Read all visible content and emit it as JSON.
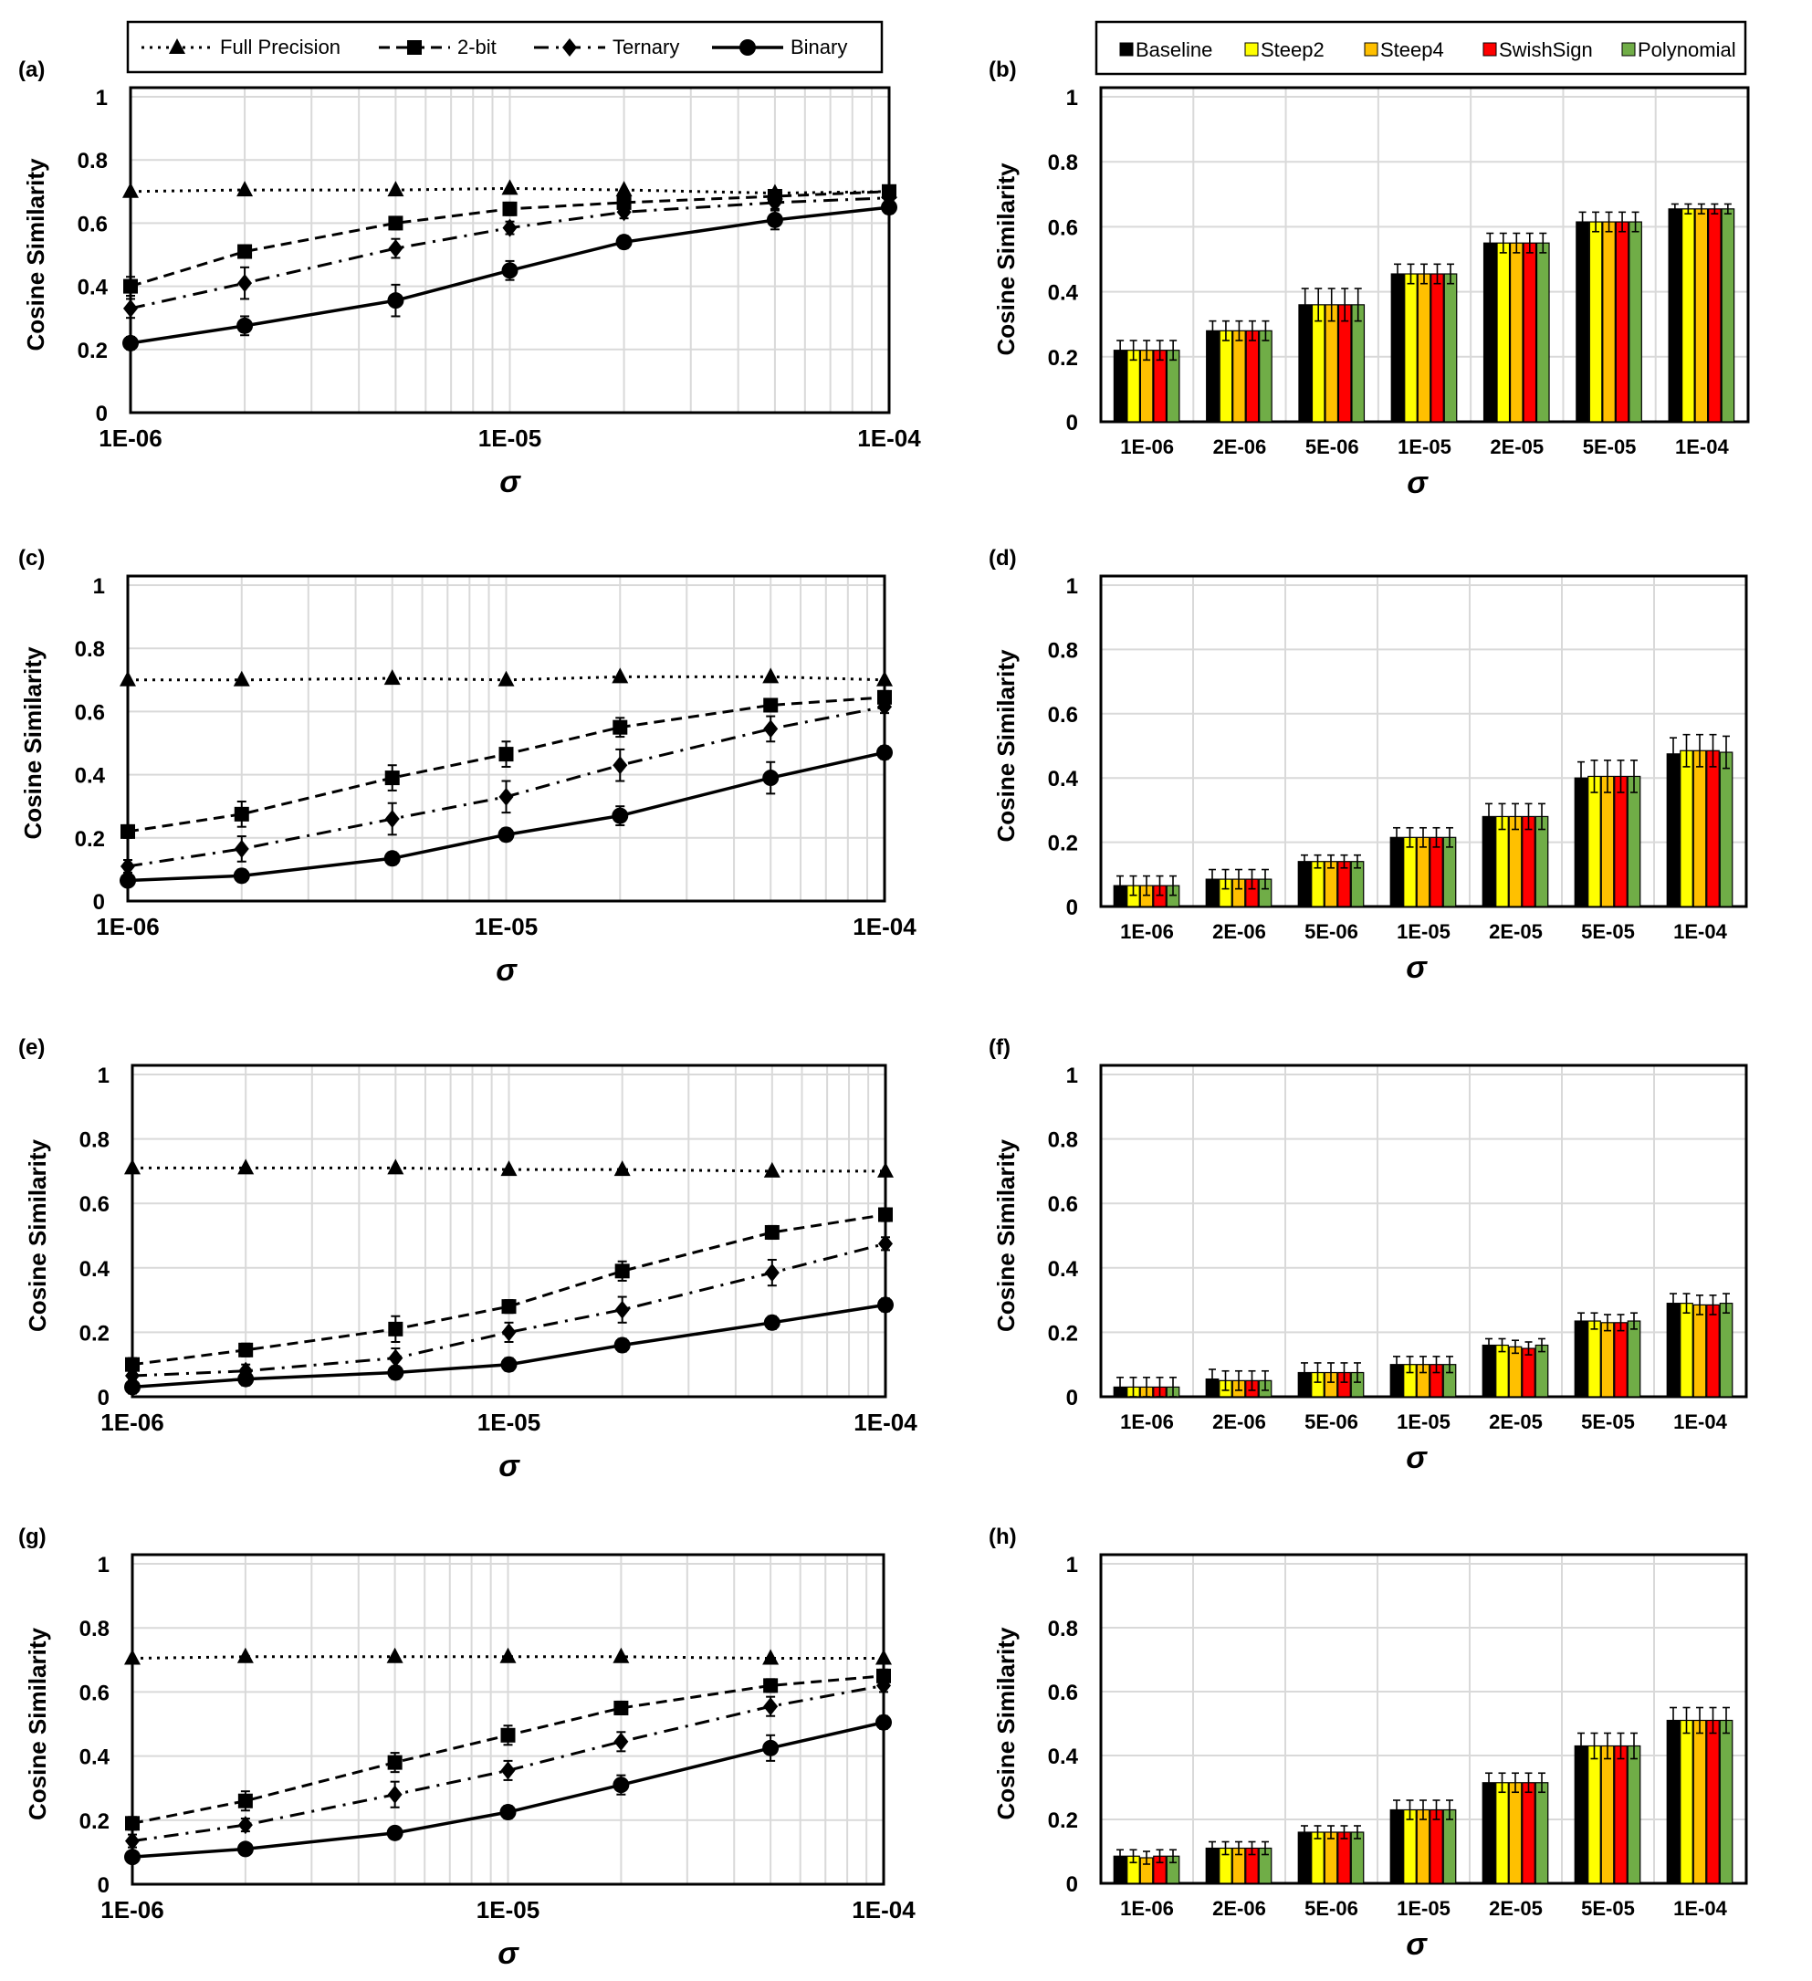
{
  "legends": {
    "line": [
      {
        "label": "Full Precision",
        "style": "dotted",
        "marker": "triangle"
      },
      {
        "label": "2-bit",
        "style": "dashed",
        "marker": "square"
      },
      {
        "label": "Ternary",
        "style": "dashdot",
        "marker": "diamond"
      },
      {
        "label": "Binary",
        "style": "solid",
        "marker": "circle"
      }
    ],
    "bar": [
      {
        "label": "Baseline",
        "color": "#000000"
      },
      {
        "label": "Steep2",
        "color": "#ffff00"
      },
      {
        "label": "Steep4",
        "color": "#ffc000"
      },
      {
        "label": "SwishSign",
        "color": "#ff0000"
      },
      {
        "label": "Polynomial",
        "color": "#70ad47"
      }
    ]
  },
  "chart_data": [
    {
      "panel": "(a)",
      "type": "line",
      "xscale": "log",
      "x": [
        1e-06,
        2e-06,
        5e-06,
        1e-05,
        2e-05,
        5e-05,
        0.0001
      ],
      "xtick_labels": [
        "1E-06",
        "1E-05",
        "1E-04"
      ],
      "xlabel": "σ",
      "ylabel": "Cosine Similarity",
      "ylim": [
        0,
        1
      ],
      "yticks": [
        "0",
        "0.2",
        "0.4",
        "0.6",
        "0.8",
        "1"
      ],
      "grid": true,
      "series": [
        {
          "name": "Full Precision",
          "values": [
            0.7,
            0.705,
            0.705,
            0.71,
            0.705,
            0.695,
            0.7
          ],
          "errors": [
            0,
            0,
            0,
            0,
            0,
            0,
            0
          ]
        },
        {
          "name": "2-bit",
          "values": [
            0.4,
            0.51,
            0.6,
            0.645,
            0.665,
            0.685,
            0.7
          ],
          "errors": [
            0.03,
            0.02,
            0.02,
            0.02,
            0.02,
            0.01,
            0.01
          ]
        },
        {
          "name": "Ternary",
          "values": [
            0.33,
            0.41,
            0.52,
            0.585,
            0.635,
            0.665,
            0.68
          ],
          "errors": [
            0.03,
            0.05,
            0.03,
            0.02,
            0.02,
            0.02,
            0.01
          ]
        },
        {
          "name": "Binary",
          "values": [
            0.22,
            0.275,
            0.355,
            0.45,
            0.54,
            0.61,
            0.65
          ],
          "errors": [
            0.02,
            0.03,
            0.05,
            0.03,
            0.02,
            0.03,
            0.02
          ]
        }
      ]
    },
    {
      "panel": "(b)",
      "type": "bar",
      "categories": [
        "1E-06",
        "2E-06",
        "5E-06",
        "1E-05",
        "2E-05",
        "5E-05",
        "1E-04"
      ],
      "xlabel": "σ",
      "ylabel": "Cosine Similarity",
      "ylim": [
        0,
        1
      ],
      "yticks": [
        "0",
        "0.2",
        "0.4",
        "0.6",
        "0.8",
        "1"
      ],
      "grid": true,
      "series": [
        {
          "name": "Baseline",
          "values": [
            0.22,
            0.28,
            0.36,
            0.455,
            0.55,
            0.615,
            0.655
          ],
          "errors": [
            0.03,
            0.03,
            0.05,
            0.03,
            0.03,
            0.03,
            0.015
          ]
        },
        {
          "name": "Steep2",
          "values": [
            0.22,
            0.28,
            0.36,
            0.455,
            0.55,
            0.615,
            0.655
          ],
          "errors": [
            0.03,
            0.03,
            0.05,
            0.03,
            0.03,
            0.03,
            0.015
          ]
        },
        {
          "name": "Steep4",
          "values": [
            0.22,
            0.28,
            0.36,
            0.455,
            0.55,
            0.615,
            0.655
          ],
          "errors": [
            0.03,
            0.03,
            0.05,
            0.03,
            0.03,
            0.03,
            0.015
          ]
        },
        {
          "name": "SwishSign",
          "values": [
            0.22,
            0.28,
            0.36,
            0.455,
            0.55,
            0.615,
            0.655
          ],
          "errors": [
            0.03,
            0.03,
            0.05,
            0.03,
            0.03,
            0.03,
            0.015
          ]
        },
        {
          "name": "Polynomial",
          "values": [
            0.22,
            0.28,
            0.36,
            0.455,
            0.55,
            0.615,
            0.655
          ],
          "errors": [
            0.03,
            0.03,
            0.05,
            0.03,
            0.03,
            0.03,
            0.015
          ]
        }
      ]
    },
    {
      "panel": "(c)",
      "type": "line",
      "xscale": "log",
      "x": [
        1e-06,
        2e-06,
        5e-06,
        1e-05,
        2e-05,
        5e-05,
        0.0001
      ],
      "xtick_labels": [
        "1E-06",
        "1E-05",
        "1E-04"
      ],
      "xlabel": "σ",
      "ylabel": "Cosine Similarity",
      "ylim": [
        0,
        1
      ],
      "yticks": [
        "0",
        "0.2",
        "0.4",
        "0.6",
        "0.8",
        "1"
      ],
      "grid": true,
      "series": [
        {
          "name": "Full Precision",
          "values": [
            0.7,
            0.7,
            0.705,
            0.7,
            0.71,
            0.71,
            0.7
          ],
          "errors": [
            0,
            0,
            0,
            0,
            0,
            0,
            0
          ]
        },
        {
          "name": "2-bit",
          "values": [
            0.22,
            0.275,
            0.39,
            0.465,
            0.55,
            0.62,
            0.645
          ],
          "errors": [
            0.02,
            0.04,
            0.04,
            0.04,
            0.03,
            0.02,
            0.02
          ]
        },
        {
          "name": "Ternary",
          "values": [
            0.11,
            0.165,
            0.26,
            0.33,
            0.43,
            0.545,
            0.615
          ],
          "errors": [
            0.02,
            0.04,
            0.05,
            0.05,
            0.05,
            0.04,
            0.02
          ]
        },
        {
          "name": "Binary",
          "values": [
            0.065,
            0.08,
            0.135,
            0.21,
            0.27,
            0.39,
            0.47
          ],
          "errors": [
            0.01,
            0.02,
            0.02,
            0.02,
            0.03,
            0.05,
            0.02
          ]
        }
      ]
    },
    {
      "panel": "(d)",
      "type": "bar",
      "categories": [
        "1E-06",
        "2E-06",
        "5E-06",
        "1E-05",
        "2E-05",
        "5E-05",
        "1E-04"
      ],
      "xlabel": "σ",
      "ylabel": "Cosine Similarity",
      "ylim": [
        0,
        1
      ],
      "yticks": [
        "0",
        "0.2",
        "0.4",
        "0.6",
        "0.8",
        "1"
      ],
      "grid": true,
      "series": [
        {
          "name": "Baseline",
          "values": [
            0.065,
            0.085,
            0.14,
            0.215,
            0.28,
            0.4,
            0.475
          ],
          "errors": [
            0.03,
            0.03,
            0.02,
            0.03,
            0.04,
            0.05,
            0.05
          ]
        },
        {
          "name": "Steep2",
          "values": [
            0.065,
            0.085,
            0.14,
            0.215,
            0.28,
            0.405,
            0.485
          ],
          "errors": [
            0.03,
            0.03,
            0.02,
            0.03,
            0.04,
            0.05,
            0.05
          ]
        },
        {
          "name": "Steep4",
          "values": [
            0.065,
            0.085,
            0.14,
            0.215,
            0.28,
            0.405,
            0.485
          ],
          "errors": [
            0.03,
            0.03,
            0.02,
            0.03,
            0.04,
            0.05,
            0.05
          ]
        },
        {
          "name": "SwishSign",
          "values": [
            0.065,
            0.085,
            0.14,
            0.215,
            0.28,
            0.405,
            0.485
          ],
          "errors": [
            0.03,
            0.03,
            0.02,
            0.03,
            0.04,
            0.05,
            0.05
          ]
        },
        {
          "name": "Polynomial",
          "values": [
            0.065,
            0.085,
            0.14,
            0.215,
            0.28,
            0.405,
            0.48
          ],
          "errors": [
            0.03,
            0.03,
            0.02,
            0.03,
            0.04,
            0.05,
            0.05
          ]
        }
      ]
    },
    {
      "panel": "(e)",
      "type": "line",
      "xscale": "log",
      "x": [
        1e-06,
        2e-06,
        5e-06,
        1e-05,
        2e-05,
        5e-05,
        0.0001
      ],
      "xtick_labels": [
        "1E-06",
        "1E-05",
        "1E-04"
      ],
      "xlabel": "σ",
      "ylabel": "Cosine Similarity",
      "ylim": [
        0,
        1
      ],
      "yticks": [
        "0",
        "0.2",
        "0.4",
        "0.6",
        "0.8",
        "1"
      ],
      "grid": true,
      "series": [
        {
          "name": "Full Precision",
          "values": [
            0.71,
            0.71,
            0.71,
            0.705,
            0.705,
            0.7,
            0.7
          ],
          "errors": [
            0,
            0,
            0,
            0,
            0,
            0,
            0
          ]
        },
        {
          "name": "2-bit",
          "values": [
            0.1,
            0.145,
            0.21,
            0.28,
            0.39,
            0.51,
            0.565
          ],
          "errors": [
            0.02,
            0.02,
            0.04,
            0.02,
            0.03,
            0.02,
            0.02
          ]
        },
        {
          "name": "Ternary",
          "values": [
            0.065,
            0.08,
            0.12,
            0.2,
            0.27,
            0.385,
            0.475
          ],
          "errors": [
            0.02,
            0.02,
            0.03,
            0.03,
            0.04,
            0.04,
            0.02
          ]
        },
        {
          "name": "Binary",
          "values": [
            0.03,
            0.055,
            0.075,
            0.1,
            0.16,
            0.23,
            0.285
          ],
          "errors": [
            0.02,
            0.02,
            0.02,
            0.02,
            0.02,
            0.02,
            0.02
          ]
        }
      ]
    },
    {
      "panel": "(f)",
      "type": "bar",
      "categories": [
        "1E-06",
        "2E-06",
        "5E-06",
        "1E-05",
        "2E-05",
        "5E-05",
        "1E-04"
      ],
      "xlabel": "σ",
      "ylabel": "Cosine Similarity",
      "ylim": [
        0,
        1
      ],
      "yticks": [
        "0",
        "0.2",
        "0.4",
        "0.6",
        "0.8",
        "1"
      ],
      "grid": true,
      "series": [
        {
          "name": "Baseline",
          "values": [
            0.03,
            0.055,
            0.075,
            0.1,
            0.16,
            0.235,
            0.29
          ],
          "errors": [
            0.03,
            0.03,
            0.03,
            0.025,
            0.02,
            0.025,
            0.03
          ]
        },
        {
          "name": "Steep2",
          "values": [
            0.03,
            0.05,
            0.075,
            0.1,
            0.16,
            0.235,
            0.29
          ],
          "errors": [
            0.03,
            0.03,
            0.03,
            0.025,
            0.02,
            0.025,
            0.03
          ]
        },
        {
          "name": "Steep4",
          "values": [
            0.03,
            0.05,
            0.075,
            0.1,
            0.155,
            0.23,
            0.285
          ],
          "errors": [
            0.03,
            0.03,
            0.03,
            0.025,
            0.02,
            0.025,
            0.03
          ]
        },
        {
          "name": "SwishSign",
          "values": [
            0.03,
            0.05,
            0.075,
            0.1,
            0.15,
            0.23,
            0.285
          ],
          "errors": [
            0.03,
            0.03,
            0.03,
            0.025,
            0.02,
            0.025,
            0.03
          ]
        },
        {
          "name": "Polynomial",
          "values": [
            0.03,
            0.05,
            0.075,
            0.1,
            0.16,
            0.235,
            0.29
          ],
          "errors": [
            0.03,
            0.03,
            0.03,
            0.025,
            0.02,
            0.025,
            0.03
          ]
        }
      ]
    },
    {
      "panel": "(g)",
      "type": "line",
      "xscale": "log",
      "x": [
        1e-06,
        2e-06,
        5e-06,
        1e-05,
        2e-05,
        5e-05,
        0.0001
      ],
      "xtick_labels": [
        "1E-06",
        "1E-05",
        "1E-04"
      ],
      "xlabel": "σ",
      "ylabel": "Cosine Similarity",
      "ylim": [
        0,
        1
      ],
      "yticks": [
        "0",
        "0.2",
        "0.4",
        "0.6",
        "0.8",
        "1"
      ],
      "grid": true,
      "series": [
        {
          "name": "Full Precision",
          "values": [
            0.705,
            0.71,
            0.71,
            0.71,
            0.71,
            0.705,
            0.705
          ],
          "errors": [
            0,
            0,
            0,
            0,
            0,
            0,
            0
          ]
        },
        {
          "name": "2-bit",
          "values": [
            0.19,
            0.26,
            0.38,
            0.465,
            0.55,
            0.62,
            0.65
          ],
          "errors": [
            0.02,
            0.03,
            0.03,
            0.03,
            0.02,
            0.02,
            0.02
          ]
        },
        {
          "name": "Ternary",
          "values": [
            0.135,
            0.185,
            0.28,
            0.355,
            0.445,
            0.555,
            0.62
          ],
          "errors": [
            0.02,
            0.02,
            0.04,
            0.03,
            0.03,
            0.03,
            0.02
          ]
        },
        {
          "name": "Binary",
          "values": [
            0.085,
            0.11,
            0.16,
            0.225,
            0.31,
            0.425,
            0.505
          ],
          "errors": [
            0.01,
            0.01,
            0.01,
            0.02,
            0.03,
            0.04,
            0.02
          ]
        }
      ]
    },
    {
      "panel": "(h)",
      "type": "bar",
      "categories": [
        "1E-06",
        "2E-06",
        "5E-06",
        "1E-05",
        "2E-05",
        "5E-05",
        "1E-04"
      ],
      "xlabel": "σ",
      "ylabel": "Cosine Similarity",
      "ylim": [
        0,
        1
      ],
      "yticks": [
        "0",
        "0.2",
        "0.4",
        "0.6",
        "0.8",
        "1"
      ],
      "grid": true,
      "series": [
        {
          "name": "Baseline",
          "values": [
            0.085,
            0.11,
            0.16,
            0.23,
            0.315,
            0.43,
            0.51
          ],
          "errors": [
            0.02,
            0.02,
            0.02,
            0.03,
            0.03,
            0.04,
            0.04
          ]
        },
        {
          "name": "Steep2",
          "values": [
            0.085,
            0.11,
            0.16,
            0.23,
            0.315,
            0.43,
            0.51
          ],
          "errors": [
            0.02,
            0.02,
            0.02,
            0.03,
            0.03,
            0.04,
            0.04
          ]
        },
        {
          "name": "Steep4",
          "values": [
            0.08,
            0.11,
            0.16,
            0.23,
            0.315,
            0.43,
            0.51
          ],
          "errors": [
            0.02,
            0.02,
            0.02,
            0.03,
            0.03,
            0.04,
            0.04
          ]
        },
        {
          "name": "SwishSign",
          "values": [
            0.085,
            0.11,
            0.16,
            0.23,
            0.315,
            0.43,
            0.51
          ],
          "errors": [
            0.02,
            0.02,
            0.02,
            0.03,
            0.03,
            0.04,
            0.04
          ]
        },
        {
          "name": "Polynomial",
          "values": [
            0.085,
            0.11,
            0.16,
            0.23,
            0.315,
            0.43,
            0.51
          ],
          "errors": [
            0.02,
            0.02,
            0.02,
            0.03,
            0.03,
            0.04,
            0.04
          ]
        }
      ]
    }
  ]
}
